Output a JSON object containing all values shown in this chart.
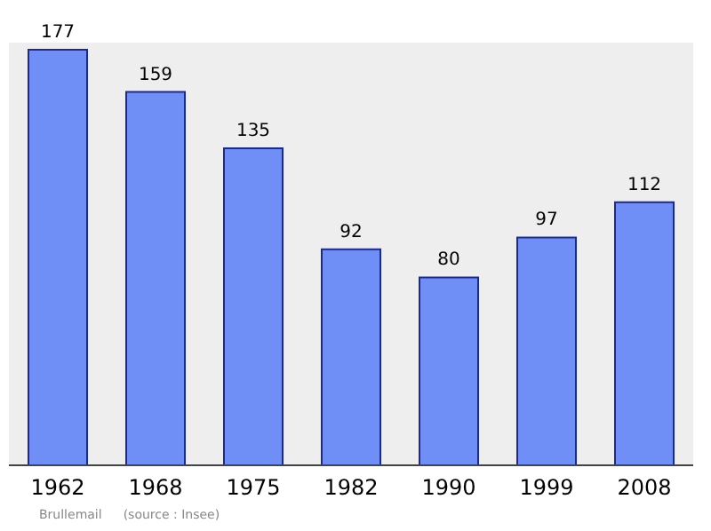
{
  "chart_data": {
    "type": "bar",
    "categories": [
      "1962",
      "1968",
      "1975",
      "1982",
      "1990",
      "1999",
      "2008"
    ],
    "values": [
      177,
      159,
      135,
      92,
      80,
      97,
      112
    ],
    "color": "#6f8ff7",
    "data_labels": true,
    "annotations": [
      "Brullemail",
      "(source : Insee)"
    ]
  }
}
